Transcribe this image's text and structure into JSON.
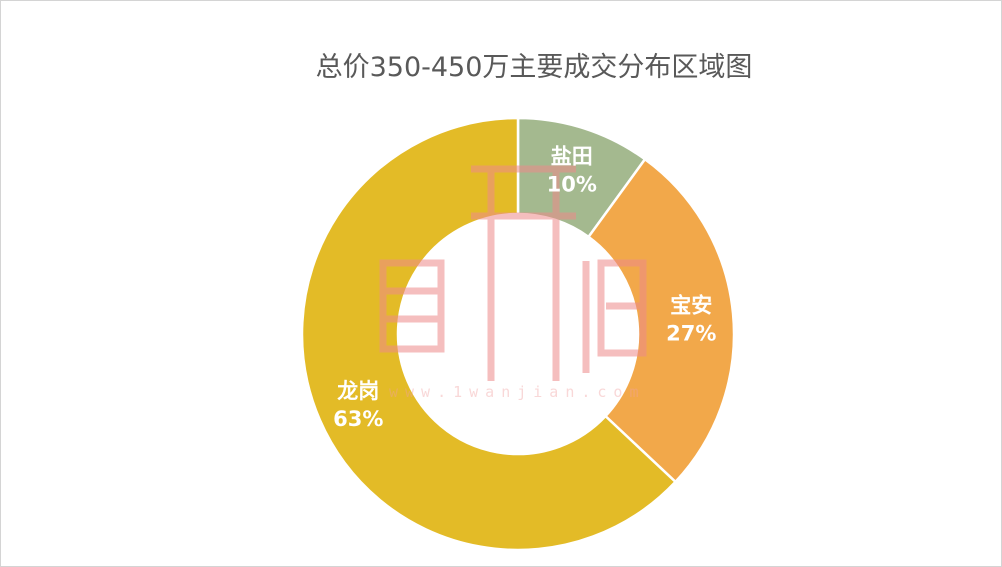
{
  "chart_data": {
    "type": "pie",
    "title": "总价350-450万主要成交分布区域图",
    "categories": [
      "盐田",
      "宝安",
      "龙岗"
    ],
    "values": [
      10,
      27,
      63
    ],
    "value_labels": [
      "10%",
      "27%",
      "63%"
    ],
    "colors": [
      "#a4b98f",
      "#f2a84a",
      "#e3bb27"
    ],
    "donut": true,
    "legend": "none"
  },
  "watermark": {
    "text": "www.1wanjian.com",
    "color": "#f08080"
  }
}
